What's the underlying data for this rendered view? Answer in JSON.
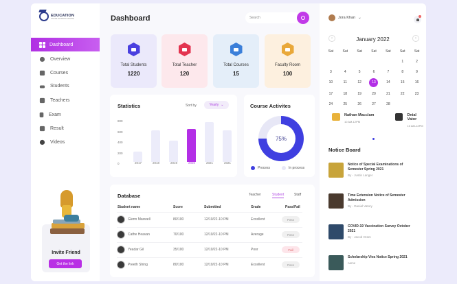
{
  "brand": {
    "title": "EDUCATION",
    "subtitle": "ONLINE LEARNING CENTRE"
  },
  "sidebar": {
    "active": "Dashboard",
    "items": [
      {
        "label": "Overview",
        "icon": "overview-icon"
      },
      {
        "label": "Courses",
        "icon": "courses-icon"
      },
      {
        "label": "Students",
        "icon": "students-icon"
      },
      {
        "label": "Teachers",
        "icon": "teachers-icon"
      },
      {
        "label": "Exam",
        "icon": "exam-icon"
      },
      {
        "label": "Result",
        "icon": "result-icon"
      },
      {
        "label": "Videos",
        "icon": "videos-icon"
      }
    ],
    "invite": {
      "title": "Invite Friend",
      "button": "Get the link"
    }
  },
  "header": {
    "title": "Dashboard",
    "search_placeholder": "Search"
  },
  "stats": [
    {
      "label": "Total Students",
      "value": "1220",
      "bg": "#ebe9fb",
      "icon_color": "#4a40df",
      "icon": "graduation-cap-icon"
    },
    {
      "label": "Total Teacher",
      "value": "120",
      "bg": "#fde8ec",
      "icon_color": "#e3344f",
      "icon": "teacher-board-icon"
    },
    {
      "label": "Total Courses",
      "value": "15",
      "bg": "#e4eef9",
      "icon_color": "#3b7fd9",
      "icon": "courses-icon"
    },
    {
      "label": "Faculty Room",
      "value": "100",
      "bg": "#fdf0df",
      "icon_color": "#e9a83a",
      "icon": "faculty-room-icon"
    }
  ],
  "statistics": {
    "title": "Statistics",
    "sort_label": "Sort by",
    "sort_value": "Yearly",
    "y_ticks": [
      "800",
      "600",
      "400",
      "200",
      "0"
    ]
  },
  "chart_data": {
    "type": "bar",
    "title": "Statistics",
    "categories": [
      "2017",
      "2018",
      "2019",
      "2020",
      "2021",
      "2021"
    ],
    "values": [
      200,
      600,
      400,
      620,
      750,
      600
    ],
    "highlight": "2020",
    "ylim": [
      0,
      800
    ],
    "xlabel": "",
    "ylabel": ""
  },
  "course_activities": {
    "title": "Course Activites",
    "percent": "75%",
    "legend": [
      {
        "label": "Process",
        "color": "#3f3fe0"
      },
      {
        "label": "In process",
        "color": "#e7e7f6"
      }
    ]
  },
  "database": {
    "title": "Database",
    "tabs": [
      "Teacher",
      "Student",
      "Staff"
    ],
    "active_tab": "Student",
    "columns": [
      "Student name",
      "Score",
      "Submitted",
      "Grade",
      "Pass/Fail"
    ],
    "rows": [
      {
        "name": "Glenn Maxwell",
        "score": "80/100",
        "submitted": "12/10/22-10 PM",
        "grade": "Excellent",
        "status": "Pass"
      },
      {
        "name": "Cathe Heavan",
        "score": "70/100",
        "submitted": "12/10/22-10 PM",
        "grade": "Average",
        "status": "Pass"
      },
      {
        "name": "Yeadar Gil",
        "score": "35/100",
        "submitted": "12/10/22-10 PM",
        "grade": "Poor",
        "status": "Fail"
      },
      {
        "name": "Preeth Shing",
        "score": "80/100",
        "submitted": "12/10/22-10 PM",
        "grade": "Excellent",
        "status": "Pass"
      }
    ]
  },
  "right": {
    "user": "Jora Khan",
    "calendar": {
      "title": "January 2022",
      "weekdays": [
        "Sat",
        "Sat",
        "Sat",
        "Sat",
        "Sat",
        "Sat",
        "Sat"
      ],
      "days": [
        "",
        "",
        "",
        "",
        "",
        "1",
        "2",
        "3",
        "4",
        "5",
        "6",
        "7",
        "8",
        "9",
        "10",
        "11",
        "12",
        "13",
        "14",
        "15",
        "16",
        "17",
        "18",
        "19",
        "20",
        "21",
        "22",
        "23",
        "24",
        "25",
        "26",
        "27",
        "28",
        "",
        ""
      ],
      "selected": "13"
    },
    "schedule": [
      {
        "name": "Nathan Macclam",
        "time": "10 AM-12PM"
      },
      {
        "name": "Dnial Vator",
        "time": "10 AM-12PM"
      }
    ],
    "notice_board": {
      "title": "Notice Board",
      "items": [
        {
          "title": "Notice of Special Examinations of Semester Spring 2021",
          "by": "By - Justin Langer",
          "thumb": "#c8a43a"
        },
        {
          "title": "Time Extension Notice of Semester Admission",
          "by": "By - Danial Vatory",
          "thumb": "#4a3a2e"
        },
        {
          "title": "COVID-19 Vaccination Survey October 2021",
          "by": "By - Jacob Oram",
          "thumb": "#2f4a6a"
        },
        {
          "title": "Scholarship Viva Notice Spring 2021",
          "by": "name",
          "thumb": "#3a5a5a"
        }
      ]
    }
  }
}
